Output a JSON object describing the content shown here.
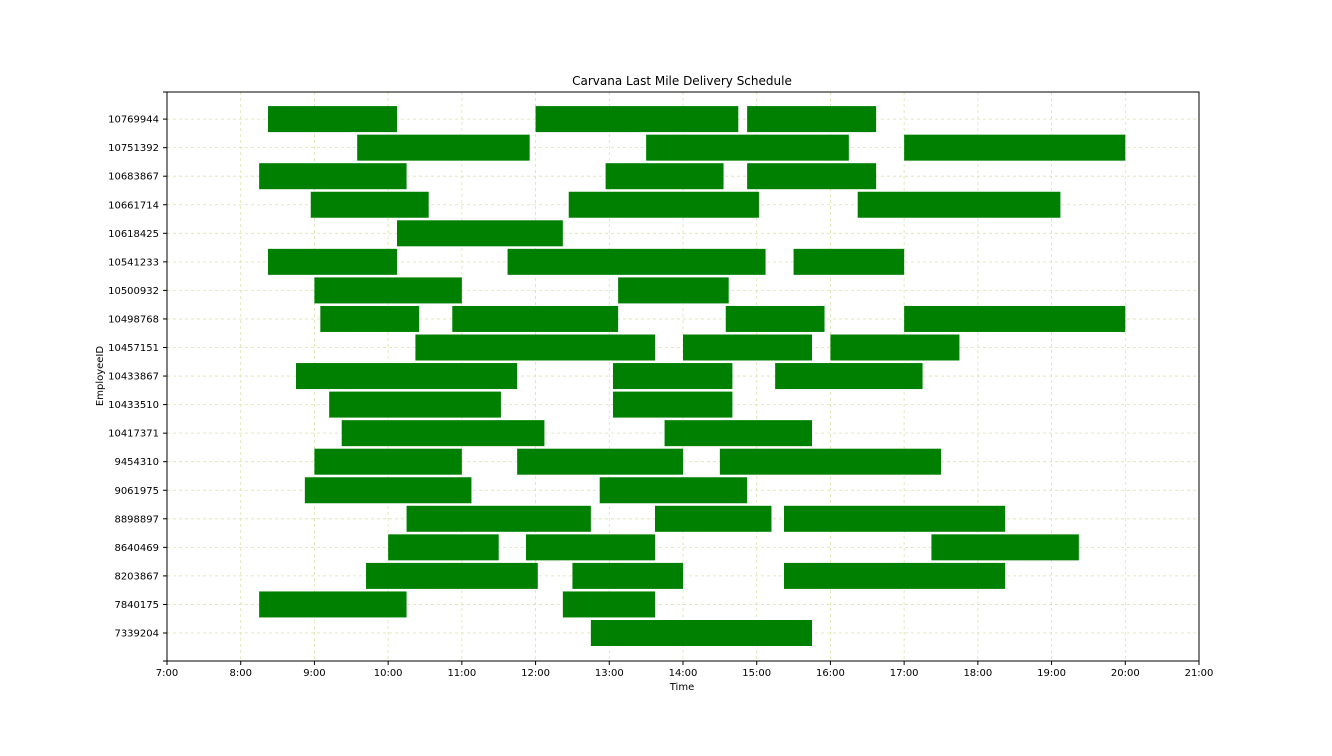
{
  "chart_data": {
    "type": "bar",
    "orientation": "horizontal-gantt",
    "title": "Carvana Last Mile Delivery Schedule",
    "xlabel": "Time",
    "ylabel": "EmployeeID",
    "xlim": [
      7,
      21
    ],
    "xticks": [
      "7:00",
      "8:00",
      "9:00",
      "10:00",
      "11:00",
      "12:00",
      "13:00",
      "14:00",
      "15:00",
      "16:00",
      "17:00",
      "18:00",
      "19:00",
      "20:00",
      "21:00"
    ],
    "grid": true,
    "bar_color": "#008000",
    "grid_color": "#d8e6a8",
    "categories": [
      "7339204",
      "7840175",
      "8203867",
      "8640469",
      "8898897",
      "9061975",
      "9454310",
      "10417371",
      "10433510",
      "10433867",
      "10457151",
      "10498768",
      "10500932",
      "10541233",
      "10618425",
      "10661714",
      "10683867",
      "10751392",
      "10769944"
    ],
    "series": [
      {
        "employee": "7339204",
        "shifts": [
          [
            12.75,
            15.75
          ]
        ]
      },
      {
        "employee": "7840175",
        "shifts": [
          [
            8.25,
            10.25
          ],
          [
            12.37,
            13.62
          ]
        ]
      },
      {
        "employee": "8203867",
        "shifts": [
          [
            9.7,
            12.03
          ],
          [
            12.5,
            14.0
          ],
          [
            15.37,
            18.37
          ]
        ]
      },
      {
        "employee": "8640469",
        "shifts": [
          [
            10.0,
            11.5
          ],
          [
            11.87,
            13.62
          ],
          [
            17.37,
            19.37
          ]
        ]
      },
      {
        "employee": "8898897",
        "shifts": [
          [
            10.25,
            12.75
          ],
          [
            13.62,
            15.2
          ],
          [
            15.37,
            18.37
          ]
        ]
      },
      {
        "employee": "9061975",
        "shifts": [
          [
            8.87,
            11.13
          ],
          [
            12.87,
            14.87
          ]
        ]
      },
      {
        "employee": "9454310",
        "shifts": [
          [
            9.0,
            11.0
          ],
          [
            11.75,
            14.0
          ],
          [
            14.5,
            17.5
          ]
        ]
      },
      {
        "employee": "10417371",
        "shifts": [
          [
            9.37,
            12.12
          ],
          [
            13.75,
            15.75
          ]
        ]
      },
      {
        "employee": "10433510",
        "shifts": [
          [
            9.2,
            11.53
          ],
          [
            13.05,
            14.67
          ]
        ]
      },
      {
        "employee": "10433867",
        "shifts": [
          [
            8.75,
            11.75
          ],
          [
            13.05,
            14.67
          ],
          [
            15.25,
            17.25
          ]
        ]
      },
      {
        "employee": "10457151",
        "shifts": [
          [
            10.37,
            13.62
          ],
          [
            14.0,
            15.75
          ],
          [
            16.0,
            17.75
          ]
        ]
      },
      {
        "employee": "10498768",
        "shifts": [
          [
            9.08,
            10.42
          ],
          [
            10.87,
            13.12
          ],
          [
            14.58,
            15.92
          ],
          [
            17.0,
            20.0
          ]
        ]
      },
      {
        "employee": "10500932",
        "shifts": [
          [
            9.0,
            11.0
          ],
          [
            13.12,
            14.62
          ]
        ]
      },
      {
        "employee": "10541233",
        "shifts": [
          [
            8.37,
            10.12
          ],
          [
            11.62,
            15.12
          ],
          [
            15.5,
            17.0
          ]
        ]
      },
      {
        "employee": "10618425",
        "shifts": [
          [
            10.12,
            12.37
          ]
        ]
      },
      {
        "employee": "10661714",
        "shifts": [
          [
            8.95,
            10.55
          ],
          [
            12.45,
            15.03
          ],
          [
            16.37,
            19.12
          ]
        ]
      },
      {
        "employee": "10683867",
        "shifts": [
          [
            8.25,
            10.25
          ],
          [
            12.95,
            14.55
          ],
          [
            14.87,
            16.62
          ]
        ]
      },
      {
        "employee": "10751392",
        "shifts": [
          [
            9.58,
            11.92
          ],
          [
            13.5,
            16.25
          ],
          [
            17.0,
            20.0
          ]
        ]
      },
      {
        "employee": "10769944",
        "shifts": [
          [
            8.37,
            10.12
          ],
          [
            12.0,
            14.75
          ],
          [
            14.87,
            16.62
          ]
        ]
      }
    ]
  }
}
